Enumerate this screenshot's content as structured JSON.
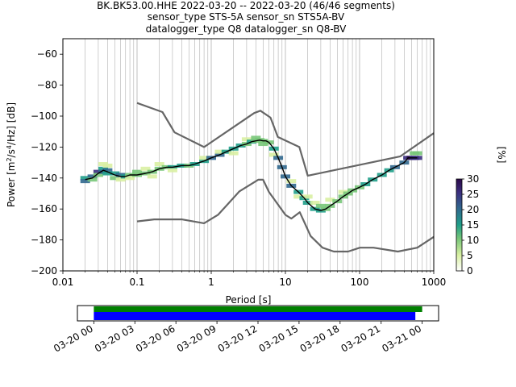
{
  "title_lines": [
    "BK.BK53.00.HHE   2022-03-20 -- 2022-03-20  (46/46 segments)",
    "sensor_type STS-5A sensor_sn STS5A-BV",
    "datalogger_type Q8 datalogger_sn Q8-BV"
  ],
  "colors": {
    "noise_models": "#666666",
    "mode_line": "#000000",
    "coverage_data": "#008000",
    "coverage_gaps": "#0000ff",
    "colormap": [
      "#ffffff",
      "#d9f0a3",
      "#78c679",
      "#1f9e89",
      "#31688e",
      "#3b2f7f",
      "#2c0a4a"
    ]
  },
  "chart_data": [
    {
      "type": "heatmap",
      "xlabel": "Period [s]",
      "ylabel_parts": [
        "Power [m",
        "2",
        "/s",
        "4",
        "/Hz] [dB]"
      ],
      "x_scale": "log",
      "xlim": [
        0.01,
        1000
      ],
      "ylim": [
        -200,
        -50
      ],
      "x_ticks": [
        0.01,
        0.1,
        1,
        10,
        100,
        1000
      ],
      "x_tick_labels": [
        "0.01",
        "0.1",
        "1",
        "10",
        "100",
        "1000"
      ],
      "y_ticks": [
        -200,
        -180,
        -160,
        -140,
        -120,
        -100,
        -80,
        -60
      ],
      "y_tick_labels": [
        "−200",
        "−180",
        "−160",
        "−140",
        "−120",
        "−100",
        "−80",
        "−60"
      ],
      "grid": true,
      "grid_axis": "x",
      "colorbar": {
        "label": "[%]",
        "range": [
          0,
          30
        ],
        "ticks": [
          0,
          5,
          10,
          15,
          20,
          25,
          30
        ],
        "tick_labels": [
          "0",
          "5",
          "10",
          "15",
          "20",
          "25",
          "30"
        ]
      },
      "new_high_noise_model": [
        [
          0.1,
          -91.5
        ],
        [
          0.22,
          -97.4
        ],
        [
          0.32,
          -110.5
        ],
        [
          0.8,
          -120
        ],
        [
          3.8,
          -98
        ],
        [
          4.6,
          -96.5
        ],
        [
          6.3,
          -101
        ],
        [
          7.9,
          -113.5
        ],
        [
          15.4,
          -120
        ],
        [
          20,
          -138.5
        ],
        [
          354.8,
          -126
        ],
        [
          1000,
          -111
        ]
      ],
      "new_low_noise_model": [
        [
          0.1,
          -168
        ],
        [
          0.17,
          -166.7
        ],
        [
          0.4,
          -166.7
        ],
        [
          0.8,
          -169.2
        ],
        [
          1.24,
          -163.7
        ],
        [
          2.4,
          -148.6
        ],
        [
          4.3,
          -141.1
        ],
        [
          5,
          -141.1
        ],
        [
          6,
          -149
        ],
        [
          10,
          -163.8
        ],
        [
          12,
          -166.2
        ],
        [
          15.6,
          -162.1
        ],
        [
          21.9,
          -177.5
        ],
        [
          31.6,
          -185
        ],
        [
          45,
          -187.5
        ],
        [
          70,
          -187.5
        ],
        [
          101,
          -185
        ],
        [
          154,
          -185
        ],
        [
          328,
          -187.5
        ],
        [
          600,
          -185
        ],
        [
          1000,
          -178
        ]
      ],
      "mode_period": [
        0.02,
        0.025,
        0.03,
        0.035,
        0.04,
        0.05,
        0.06,
        0.07,
        0.08,
        0.1,
        0.13,
        0.16,
        0.2,
        0.25,
        0.3,
        0.4,
        0.5,
        0.6,
        0.8,
        1,
        1.3,
        1.6,
        2,
        2.5,
        3,
        3.5,
        4,
        4.5,
        5,
        5.5,
        6,
        7,
        8,
        9,
        10,
        12,
        15,
        18,
        20,
        25,
        30,
        35,
        40,
        50,
        60,
        70,
        80,
        100,
        120,
        150,
        200,
        250,
        300,
        400,
        450,
        500,
        550,
        600
      ],
      "mode_power": [
        -141,
        -140,
        -137,
        -135,
        -136,
        -138,
        -139,
        -139,
        -138,
        -138,
        -137,
        -136,
        -134,
        -133,
        -133,
        -132,
        -132,
        -131,
        -129,
        -127,
        -125,
        -123,
        -121,
        -119,
        -118,
        -116.5,
        -116,
        -115.5,
        -116,
        -116,
        -117,
        -121,
        -127,
        -133,
        -139,
        -145,
        -149,
        -153,
        -156,
        -160,
        -161,
        -160,
        -158,
        -155,
        -152,
        -150,
        -148,
        -146,
        -144,
        -141,
        -138,
        -135,
        -133,
        -130,
        -127,
        -127,
        -127,
        -127
      ],
      "psd_cells": [
        {
          "period": 0.02,
          "power": -140,
          "pct": 14
        },
        {
          "period": 0.02,
          "power": -142,
          "pct": 18
        },
        {
          "period": 0.025,
          "power": -139,
          "pct": 22
        },
        {
          "period": 0.025,
          "power": -141,
          "pct": 10
        },
        {
          "period": 0.03,
          "power": -136,
          "pct": 26
        },
        {
          "period": 0.03,
          "power": -138,
          "pct": 12
        },
        {
          "period": 0.035,
          "power": -134,
          "pct": 14
        },
        {
          "period": 0.035,
          "power": -131,
          "pct": 3
        },
        {
          "period": 0.035,
          "power": -136,
          "pct": 20
        },
        {
          "period": 0.04,
          "power": -135,
          "pct": 18
        },
        {
          "period": 0.04,
          "power": -132,
          "pct": 4
        },
        {
          "period": 0.04,
          "power": -137,
          "pct": 14
        },
        {
          "period": 0.05,
          "power": -137,
          "pct": 16
        },
        {
          "period": 0.05,
          "power": -140,
          "pct": 8
        },
        {
          "period": 0.06,
          "power": -138,
          "pct": 18
        },
        {
          "period": 0.06,
          "power": -141,
          "pct": 5
        },
        {
          "period": 0.07,
          "power": -139,
          "pct": 16
        },
        {
          "period": 0.08,
          "power": -138,
          "pct": 12
        },
        {
          "period": 0.08,
          "power": -140,
          "pct": 6
        },
        {
          "period": 0.1,
          "power": -138,
          "pct": 10
        },
        {
          "period": 0.1,
          "power": -136,
          "pct": 8
        },
        {
          "period": 0.13,
          "power": -137,
          "pct": 10
        },
        {
          "period": 0.13,
          "power": -134,
          "pct": 6
        },
        {
          "period": 0.16,
          "power": -136,
          "pct": 9
        },
        {
          "period": 0.16,
          "power": -139,
          "pct": 5
        },
        {
          "period": 0.2,
          "power": -134,
          "pct": 10
        },
        {
          "period": 0.2,
          "power": -131,
          "pct": 6
        },
        {
          "period": 0.25,
          "power": -133,
          "pct": 12
        },
        {
          "period": 0.3,
          "power": -133,
          "pct": 14
        },
        {
          "period": 0.3,
          "power": -135,
          "pct": 6
        },
        {
          "period": 0.4,
          "power": -132,
          "pct": 14
        },
        {
          "period": 0.5,
          "power": -132,
          "pct": 12
        },
        {
          "period": 0.6,
          "power": -131,
          "pct": 14
        },
        {
          "period": 0.8,
          "power": -129,
          "pct": 16
        },
        {
          "period": 0.8,
          "power": -127,
          "pct": 4
        },
        {
          "period": 1,
          "power": -127,
          "pct": 18
        },
        {
          "period": 1.3,
          "power": -125,
          "pct": 18
        },
        {
          "period": 1.3,
          "power": -123,
          "pct": 4
        },
        {
          "period": 1.6,
          "power": -123,
          "pct": 16
        },
        {
          "period": 2,
          "power": -121,
          "pct": 14
        },
        {
          "period": 2,
          "power": -124,
          "pct": 4
        },
        {
          "period": 2.5,
          "power": -119,
          "pct": 14
        },
        {
          "period": 3,
          "power": -118,
          "pct": 12
        },
        {
          "period": 3,
          "power": -115,
          "pct": 6
        },
        {
          "period": 3.5,
          "power": -116.5,
          "pct": 14
        },
        {
          "period": 4,
          "power": -116,
          "pct": 12
        },
        {
          "period": 4,
          "power": -114,
          "pct": 8
        },
        {
          "period": 4.5,
          "power": -115.5,
          "pct": 12
        },
        {
          "period": 5,
          "power": -116,
          "pct": 12
        },
        {
          "period": 5,
          "power": -118,
          "pct": 8
        },
        {
          "period": 6,
          "power": -117,
          "pct": 12
        },
        {
          "period": 7,
          "power": -121,
          "pct": 14
        },
        {
          "period": 7,
          "power": -125,
          "pct": 4
        },
        {
          "period": 8,
          "power": -127,
          "pct": 18
        },
        {
          "period": 9,
          "power": -133,
          "pct": 22
        },
        {
          "period": 10,
          "power": -139,
          "pct": 22
        },
        {
          "period": 12,
          "power": -145,
          "pct": 20
        },
        {
          "period": 12,
          "power": -142,
          "pct": 6
        },
        {
          "period": 15,
          "power": -149,
          "pct": 16
        },
        {
          "period": 15,
          "power": -152,
          "pct": 6
        },
        {
          "period": 18,
          "power": -153,
          "pct": 14
        },
        {
          "period": 20,
          "power": -156,
          "pct": 14
        },
        {
          "period": 20,
          "power": -152,
          "pct": 5
        },
        {
          "period": 25,
          "power": -160,
          "pct": 16
        },
        {
          "period": 25,
          "power": -156,
          "pct": 6
        },
        {
          "period": 30,
          "power": -161,
          "pct": 14
        },
        {
          "period": 30,
          "power": -158,
          "pct": 8
        },
        {
          "period": 35,
          "power": -160,
          "pct": 12
        },
        {
          "period": 40,
          "power": -158,
          "pct": 12
        },
        {
          "period": 40,
          "power": -154,
          "pct": 4
        },
        {
          "period": 50,
          "power": -155,
          "pct": 12
        },
        {
          "period": 60,
          "power": -152,
          "pct": 12
        },
        {
          "period": 60,
          "power": -149,
          "pct": 4
        },
        {
          "period": 70,
          "power": -150,
          "pct": 12
        },
        {
          "period": 80,
          "power": -148,
          "pct": 12
        },
        {
          "period": 100,
          "power": -146,
          "pct": 12
        },
        {
          "period": 120,
          "power": -144,
          "pct": 14
        },
        {
          "period": 150,
          "power": -141,
          "pct": 14
        },
        {
          "period": 200,
          "power": -138,
          "pct": 16
        },
        {
          "period": 250,
          "power": -135,
          "pct": 16
        },
        {
          "period": 300,
          "power": -133,
          "pct": 18
        },
        {
          "period": 400,
          "power": -130,
          "pct": 22
        },
        {
          "period": 450,
          "power": -127,
          "pct": 26
        },
        {
          "period": 500,
          "power": -127,
          "pct": 28
        },
        {
          "period": 550,
          "power": -127,
          "pct": 26
        },
        {
          "period": 600,
          "power": -127,
          "pct": 24
        },
        {
          "period": 550,
          "power": -124,
          "pct": 10
        },
        {
          "period": 600,
          "power": -124,
          "pct": 8
        }
      ]
    },
    {
      "type": "timeline",
      "x_tick_labels": [
        "03-20 00",
        "03-20 03",
        "03-20 06",
        "03-20 09",
        "03-20 12",
        "03-20 15",
        "03-20 18",
        "03-20 21",
        "03-21 00"
      ],
      "x_tick_hours": [
        0,
        3,
        6,
        9,
        12,
        15,
        18,
        21,
        24
      ],
      "xlim_hours": [
        -1.2,
        25.2
      ],
      "data_coverage_hours": [
        0,
        24
      ],
      "gaps_coverage_hours": [
        0,
        23.5
      ]
    }
  ]
}
